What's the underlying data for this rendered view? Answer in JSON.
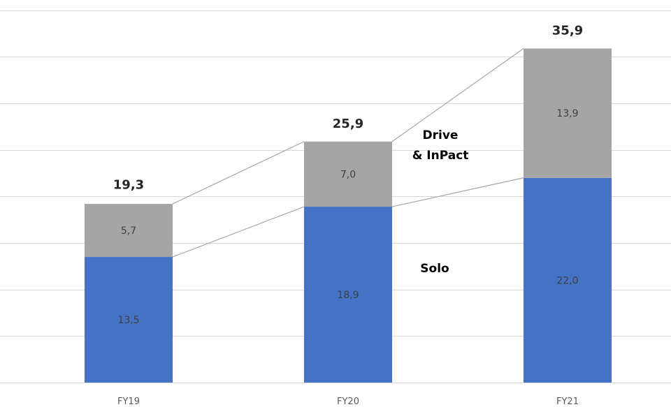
{
  "chart_data": {
    "type": "bar",
    "stacked": true,
    "categories": [
      "FY19",
      "FY20",
      "FY21"
    ],
    "series": [
      {
        "name": "Solo",
        "values": [
          13.5,
          18.9,
          22.0
        ],
        "labels": [
          "13,5",
          "18,9",
          "22,0"
        ],
        "color": "#4472c4"
      },
      {
        "name": "Drive & InPact",
        "name_lines": [
          "Drive",
          "& InPact"
        ],
        "values": [
          5.7,
          7.0,
          13.9
        ],
        "labels": [
          "5,7",
          "7,0",
          "13,9"
        ],
        "color": "#a5a5a5"
      }
    ],
    "totals": [
      19.3,
      25.9,
      35.9
    ],
    "total_labels": [
      "19,3",
      "25,9",
      "35,9"
    ],
    "ylim": [
      0,
      40
    ],
    "grid": true,
    "legend": "inline",
    "connector_lines": true,
    "title": "",
    "xlabel": "",
    "ylabel": ""
  }
}
